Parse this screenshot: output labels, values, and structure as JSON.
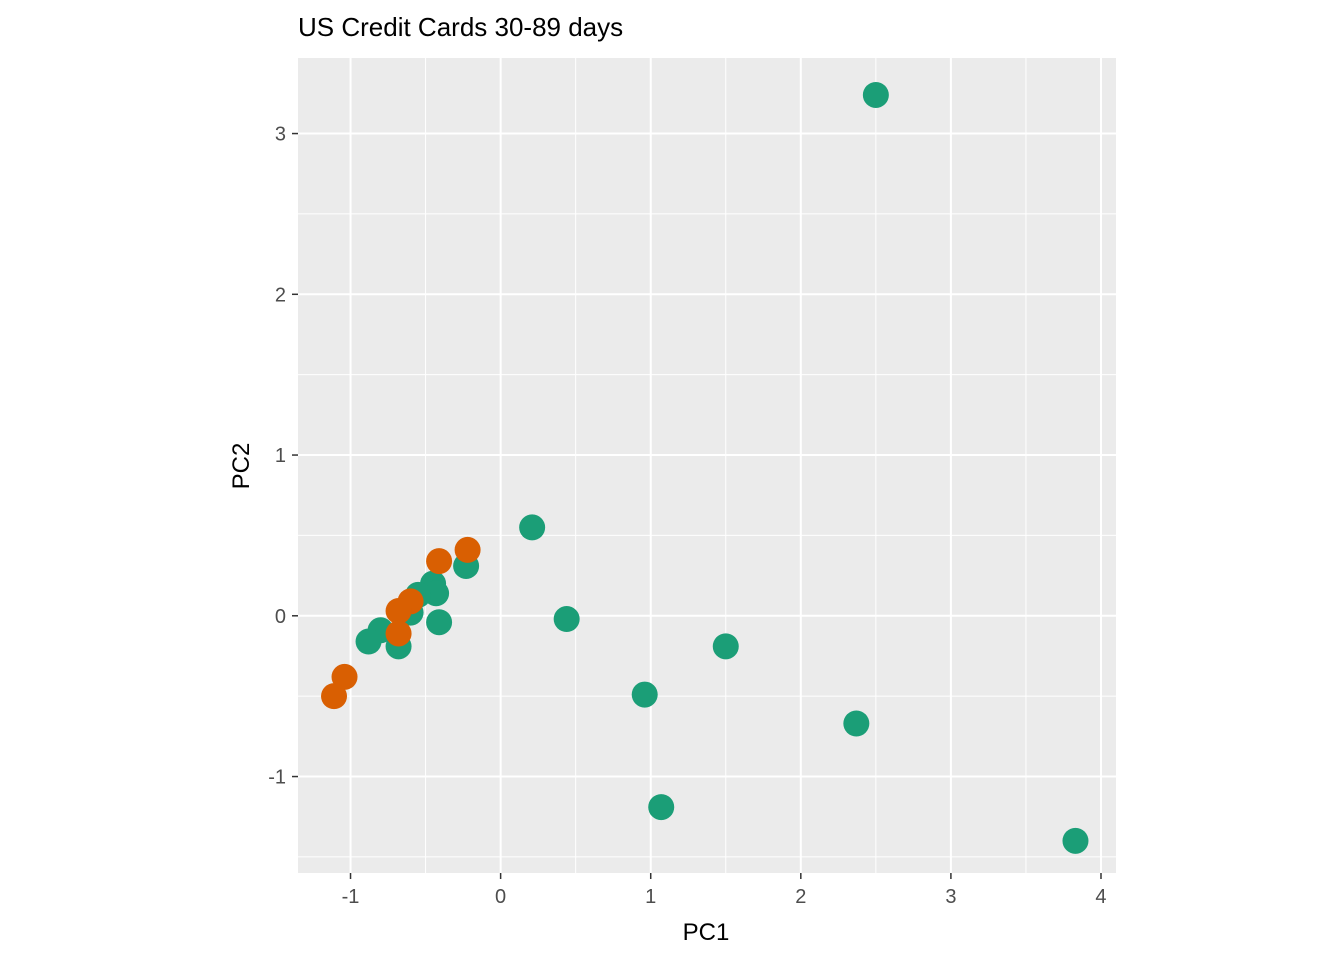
{
  "chart_data": {
    "type": "scatter",
    "title": "US Credit Cards 30-89 days",
    "xlabel": "PC1",
    "ylabel": "PC2",
    "xlim": [
      -1.35,
      4.1
    ],
    "ylim": [
      -1.6,
      3.47
    ],
    "x_ticks": [
      -1,
      0,
      1,
      2,
      3,
      4
    ],
    "y_ticks": [
      -1,
      0,
      1,
      2,
      3
    ],
    "x_tick_labels": [
      "-1",
      "0",
      "1",
      "2",
      "3",
      "4"
    ],
    "y_tick_labels": [
      "-1",
      "0",
      "1",
      "2",
      "3"
    ],
    "grid": true,
    "legend": "none",
    "panel_color": "#ebebeb",
    "grid_color": "#ffffff",
    "series": [
      {
        "color": "#1b9e77",
        "points": [
          {
            "x": 2.5,
            "y": 3.24
          },
          {
            "x": 0.21,
            "y": 0.55
          },
          {
            "x": 0.44,
            "y": -0.02
          },
          {
            "x": 1.5,
            "y": -0.19
          },
          {
            "x": 0.96,
            "y": -0.49
          },
          {
            "x": 2.37,
            "y": -0.67
          },
          {
            "x": 1.07,
            "y": -1.19
          },
          {
            "x": 3.83,
            "y": -1.4
          },
          {
            "x": -0.23,
            "y": 0.31
          },
          {
            "x": -0.45,
            "y": 0.2
          },
          {
            "x": -0.43,
            "y": 0.14
          },
          {
            "x": -0.41,
            "y": -0.04
          },
          {
            "x": -0.55,
            "y": 0.13
          },
          {
            "x": -0.6,
            "y": 0.02
          },
          {
            "x": -0.68,
            "y": -0.19
          },
          {
            "x": -0.8,
            "y": -0.09
          },
          {
            "x": -0.88,
            "y": -0.16
          }
        ]
      },
      {
        "color": "#d95f02",
        "points": [
          {
            "x": -0.22,
            "y": 0.41
          },
          {
            "x": -0.41,
            "y": 0.34
          },
          {
            "x": -0.6,
            "y": 0.09
          },
          {
            "x": -0.68,
            "y": 0.03
          },
          {
            "x": -0.68,
            "y": -0.11
          },
          {
            "x": -1.04,
            "y": -0.38
          },
          {
            "x": -1.11,
            "y": -0.5
          }
        ]
      }
    ]
  }
}
